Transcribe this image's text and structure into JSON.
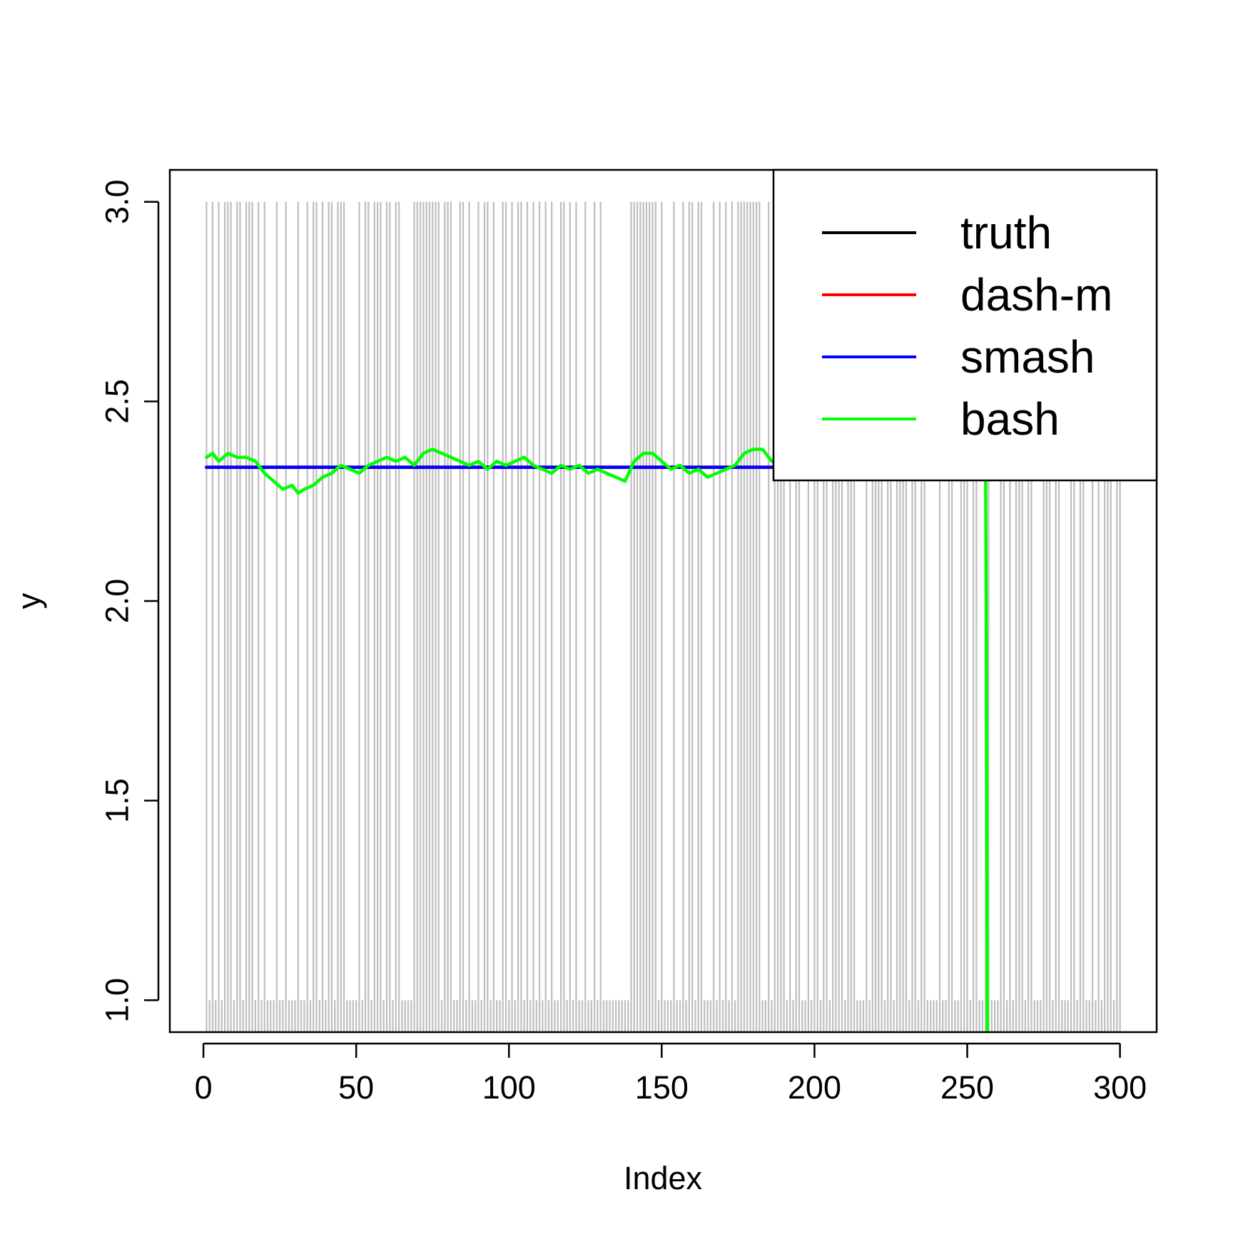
{
  "chart_data": {
    "type": "line",
    "xlabel": "Index",
    "ylabel": "y",
    "xlim": [
      -11,
      312
    ],
    "ylim": [
      0.92,
      3.08
    ],
    "x_ticks": [
      0,
      50,
      100,
      150,
      200,
      250,
      300
    ],
    "x_tick_labels": [
      "0",
      "50",
      "100",
      "150",
      "200",
      "250",
      "300"
    ],
    "y_ticks": [
      1.0,
      1.5,
      2.0,
      2.5,
      3.0
    ],
    "y_tick_labels": [
      "1.0",
      "1.5",
      "2.0",
      "2.5",
      "3.0"
    ],
    "grid": false,
    "legend_position": "top-right",
    "observations": {
      "name": "",
      "color": "#bebebe",
      "style": "vertical lines from the bottom axis to each observed value",
      "x_start": 1,
      "x_end": 300,
      "y_low": 1,
      "y_high": 3,
      "high_index_runs": [
        [
          1,
          1
        ],
        [
          3,
          3
        ],
        [
          5,
          5
        ],
        [
          7,
          9
        ],
        [
          11,
          12
        ],
        [
          14,
          16
        ],
        [
          18,
          18
        ],
        [
          20,
          20
        ],
        [
          24,
          24
        ],
        [
          27,
          27
        ],
        [
          31,
          31
        ],
        [
          34,
          34
        ],
        [
          36,
          37
        ],
        [
          39,
          39
        ],
        [
          41,
          42
        ],
        [
          44,
          46
        ],
        [
          51,
          51
        ],
        [
          53,
          54
        ],
        [
          56,
          58
        ],
        [
          60,
          61
        ],
        [
          63,
          64
        ],
        [
          69,
          77
        ],
        [
          79,
          81
        ],
        [
          84,
          85
        ],
        [
          87,
          87
        ],
        [
          90,
          90
        ],
        [
          92,
          93
        ],
        [
          95,
          95
        ],
        [
          98,
          99
        ],
        [
          101,
          101
        ],
        [
          103,
          104
        ],
        [
          106,
          106
        ],
        [
          108,
          108
        ],
        [
          110,
          110
        ],
        [
          112,
          112
        ],
        [
          114,
          114
        ],
        [
          117,
          118
        ],
        [
          120,
          120
        ],
        [
          122,
          122
        ],
        [
          125,
          125
        ],
        [
          128,
          128
        ],
        [
          130,
          130
        ],
        [
          140,
          148
        ],
        [
          150,
          150
        ],
        [
          154,
          154
        ],
        [
          157,
          157
        ],
        [
          159,
          160
        ],
        [
          162,
          163
        ],
        [
          167,
          167
        ],
        [
          169,
          169
        ],
        [
          171,
          171
        ],
        [
          173,
          173
        ],
        [
          175,
          182
        ],
        [
          185,
          185
        ],
        [
          187,
          190
        ],
        [
          192,
          192
        ],
        [
          194,
          195
        ],
        [
          198,
          198
        ],
        [
          200,
          201
        ],
        [
          203,
          204
        ],
        [
          206,
          209
        ],
        [
          211,
          213
        ],
        [
          217,
          217
        ],
        [
          219,
          222
        ],
        [
          224,
          225
        ],
        [
          227,
          230
        ],
        [
          232,
          233
        ],
        [
          235,
          236
        ],
        [
          241,
          241
        ],
        [
          244,
          245
        ],
        [
          248,
          250
        ],
        [
          252,
          253
        ],
        [
          256,
          257
        ],
        [
          261,
          262
        ],
        [
          264,
          264
        ],
        [
          266,
          268
        ],
        [
          270,
          271
        ],
        [
          275,
          277
        ],
        [
          279,
          280
        ],
        [
          284,
          285
        ],
        [
          287,
          288
        ],
        [
          291,
          291
        ],
        [
          293,
          293
        ],
        [
          295,
          297
        ],
        [
          299,
          300
        ]
      ]
    },
    "series": [
      {
        "name": "truth",
        "color": "#000000",
        "x": [
          1,
          300
        ],
        "y": [
          2.335,
          2.335
        ]
      },
      {
        "name": "dash-m",
        "color": "#ff0000",
        "x": [
          1,
          300
        ],
        "y": [
          2.335,
          2.335
        ]
      },
      {
        "name": "smash",
        "color": "#0000ff",
        "x": [
          1,
          300
        ],
        "y": [
          2.335,
          2.335
        ]
      },
      {
        "name": "bash",
        "color": "#00ff00",
        "x": [
          1,
          3,
          5,
          8,
          11,
          14,
          17,
          20,
          23,
          26,
          29,
          31,
          33,
          36,
          39,
          42,
          45,
          48,
          51,
          54,
          57,
          60,
          63,
          66,
          69,
          72,
          75,
          78,
          81,
          84,
          87,
          90,
          93,
          96,
          99,
          102,
          105,
          108,
          111,
          114,
          117,
          120,
          123,
          126,
          129,
          132,
          135,
          138,
          141,
          144,
          147,
          150,
          153,
          156,
          159,
          162,
          165,
          168,
          171,
          174,
          177,
          180,
          183,
          186,
          190,
          200,
          210,
          220,
          230,
          240,
          250,
          255,
          256,
          256.2,
          256.4,
          256.6
        ],
        "y": [
          2.36,
          2.37,
          2.35,
          2.37,
          2.36,
          2.36,
          2.35,
          2.32,
          2.3,
          2.28,
          2.29,
          2.27,
          2.28,
          2.29,
          2.31,
          2.32,
          2.34,
          2.33,
          2.32,
          2.34,
          2.35,
          2.36,
          2.35,
          2.36,
          2.34,
          2.37,
          2.38,
          2.37,
          2.36,
          2.35,
          2.34,
          2.35,
          2.33,
          2.35,
          2.34,
          2.35,
          2.36,
          2.34,
          2.33,
          2.32,
          2.34,
          2.33,
          2.34,
          2.32,
          2.33,
          2.32,
          2.31,
          2.3,
          2.35,
          2.37,
          2.37,
          2.35,
          2.33,
          2.34,
          2.32,
          2.33,
          2.31,
          2.32,
          2.33,
          2.34,
          2.37,
          2.38,
          2.38,
          2.35,
          2.36,
          2.36,
          2.36,
          2.36,
          2.36,
          2.36,
          2.36,
          2.36,
          2.36,
          2.0,
          1.5,
          0.92
        ]
      }
    ]
  }
}
